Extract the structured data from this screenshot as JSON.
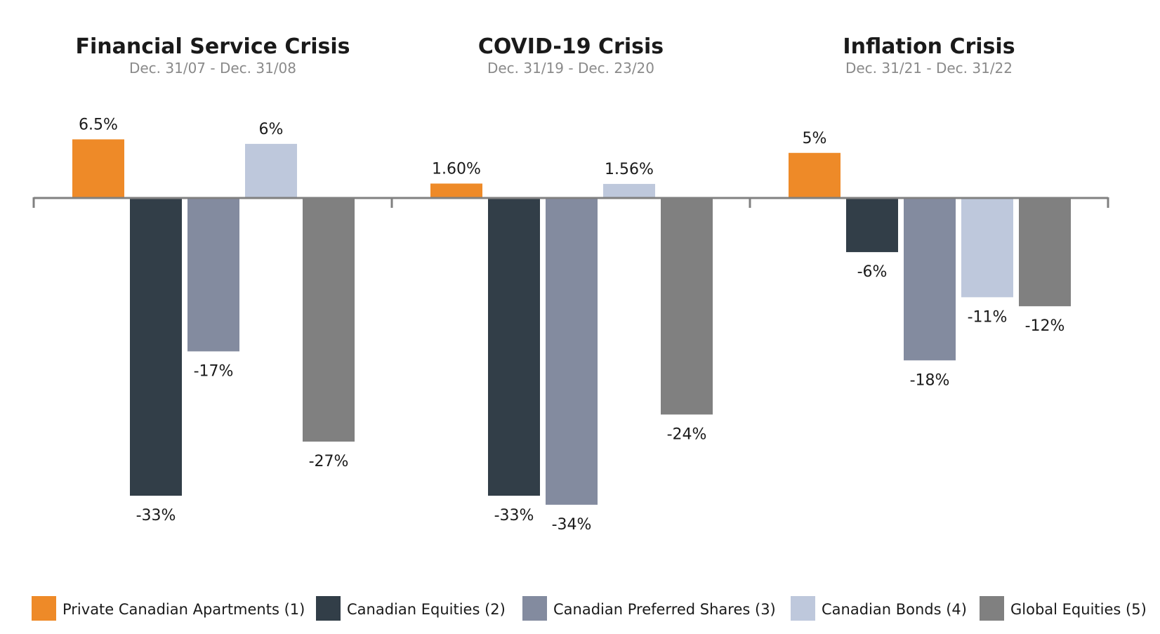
{
  "chart_data": {
    "type": "bar",
    "series": [
      {
        "name": "Private Canadian Apartments (1)",
        "color": "#ee8a28"
      },
      {
        "name": "Canadian Equities (2)",
        "color": "#323e48"
      },
      {
        "name": "Canadian Preferred Shares (3)",
        "color": "#838b9f"
      },
      {
        "name": "Canadian Bonds (4)",
        "color": "#bec8dc"
      },
      {
        "name": "Global Equities (5)",
        "color": "#808080"
      }
    ],
    "panels": [
      {
        "title": "Financial Service Crisis",
        "subtitle": "Dec. 31/07 - Dec. 31/08",
        "values": [
          6.5,
          -33,
          -17,
          6,
          -27
        ],
        "labels": [
          "6.5%",
          "-33%",
          "-17%",
          "6%",
          "-27%"
        ]
      },
      {
        "title": "COVID-19 Crisis",
        "subtitle": "Dec. 31/19 - Dec. 23/20",
        "values": [
          1.6,
          -33,
          -34,
          1.56,
          -24
        ],
        "labels": [
          "1.60%",
          "-33%",
          "-34%",
          "1.56%",
          "-24%"
        ]
      },
      {
        "title": "Inflation Crisis",
        "subtitle": "Dec. 31/21 - Dec. 31/22",
        "values": [
          5,
          -6,
          -18,
          -11,
          -12
        ],
        "labels": [
          "5%",
          "-6%",
          "-18%",
          "-11%",
          "-12%"
        ]
      }
    ],
    "legend_position": "bottom",
    "grid": false,
    "axis_color": "#808080"
  }
}
